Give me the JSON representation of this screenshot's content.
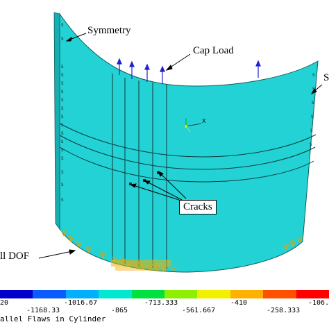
{
  "labels": {
    "symmetry": "Symmetry",
    "cap_load": "Cap Load",
    "right_cut": "S",
    "cracks": "Cracks",
    "all_dof": "ll DOF",
    "axis_x": "X"
  },
  "legend": {
    "colors": [
      "#0000c8",
      "#0a5cff",
      "#00b0ff",
      "#00e8d0",
      "#00e040",
      "#8cf000",
      "#f0f000",
      "#ffb000",
      "#ff5000",
      "#ff0000"
    ],
    "row1": [
      "20",
      "-1016.67",
      "-713.333",
      "-410",
      "-106."
    ],
    "row2": [
      "-1168.33",
      "-865",
      "-561.667",
      "-258.333"
    ]
  },
  "caption": "allel Flaws in Cylinder",
  "model": {
    "surface_color": "#22d2d4",
    "load_arrow_color": "#2020d0",
    "constraint_color": "#e8a000"
  }
}
